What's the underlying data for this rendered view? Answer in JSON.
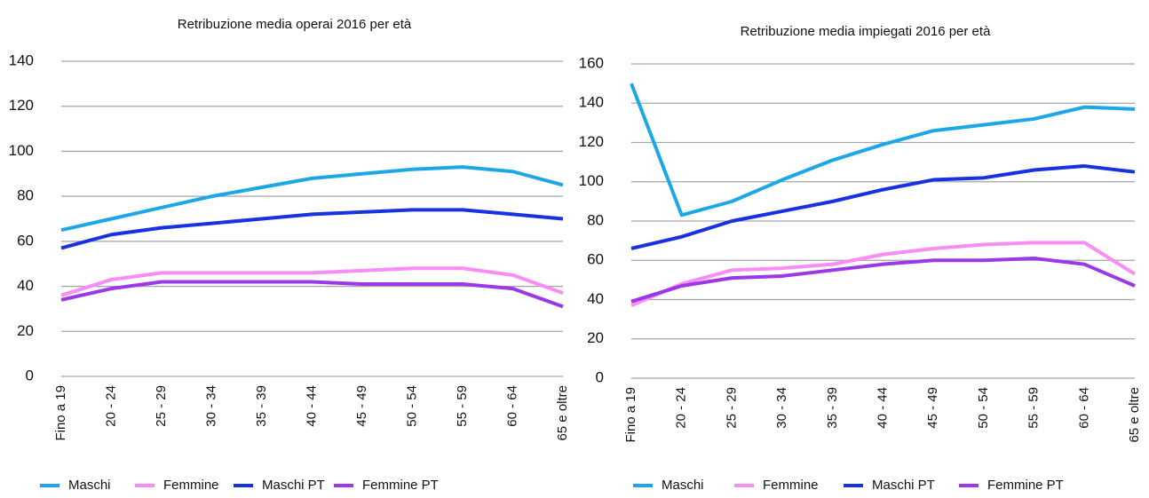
{
  "chart_data": [
    {
      "type": "line",
      "title": "Retribuzione media operai 2016 per età",
      "categories": [
        "Fino a 19",
        "20 - 24",
        "25 - 29",
        "30 - 34",
        "35 - 39",
        "40 - 44",
        "45 - 49",
        "50 - 54",
        "55 - 59",
        "60 - 64",
        "65 e oltre"
      ],
      "series": [
        {
          "name": "Maschi",
          "color": "#1ea7e8",
          "values": [
            65,
            70,
            75,
            80,
            84,
            88,
            90,
            92,
            93,
            91,
            85
          ]
        },
        {
          "name": "Femmine",
          "color": "#f98cf5",
          "values": [
            36,
            43,
            46,
            46,
            46,
            46,
            47,
            48,
            48,
            45,
            37
          ]
        },
        {
          "name": "Maschi PT",
          "color": "#1732e0",
          "values": [
            57,
            63,
            66,
            68,
            70,
            72,
            73,
            74,
            74,
            72,
            70
          ]
        },
        {
          "name": "Femmine PT",
          "color": "#9b38e8",
          "values": [
            34,
            39,
            42,
            42,
            42,
            42,
            41,
            41,
            41,
            39,
            31
          ]
        }
      ],
      "ylim": [
        0,
        140
      ],
      "yticks": [
        0,
        20,
        40,
        60,
        80,
        100,
        120,
        140
      ],
      "grid": true,
      "legend": "bottom"
    },
    {
      "type": "line",
      "title": "Retribuzione media impiegati 2016 per età",
      "categories": [
        "Fino a 19",
        "20 - 24",
        "25 - 29",
        "30 - 34",
        "35 - 39",
        "40 - 44",
        "45 - 49",
        "50 - 54",
        "55 - 59",
        "60 - 64",
        "65 e oltre"
      ],
      "series": [
        {
          "name": "Maschi",
          "color": "#1ea7e8",
          "values": [
            150,
            83,
            90,
            101,
            111,
            119,
            126,
            129,
            132,
            138,
            137
          ]
        },
        {
          "name": "Femmine",
          "color": "#f98cf5",
          "values": [
            37,
            48,
            55,
            56,
            58,
            63,
            66,
            68,
            69,
            69,
            53
          ]
        },
        {
          "name": "Maschi PT",
          "color": "#1732e0",
          "values": [
            66,
            72,
            80,
            85,
            90,
            96,
            101,
            102,
            106,
            108,
            105
          ]
        },
        {
          "name": "Femmine PT",
          "color": "#9b38e8",
          "values": [
            39,
            47,
            51,
            52,
            55,
            58,
            60,
            60,
            61,
            58,
            47
          ]
        }
      ],
      "ylim": [
        0,
        160
      ],
      "yticks": [
        0,
        20,
        40,
        60,
        80,
        100,
        120,
        140,
        160
      ],
      "grid": true,
      "legend": "bottom"
    }
  ]
}
